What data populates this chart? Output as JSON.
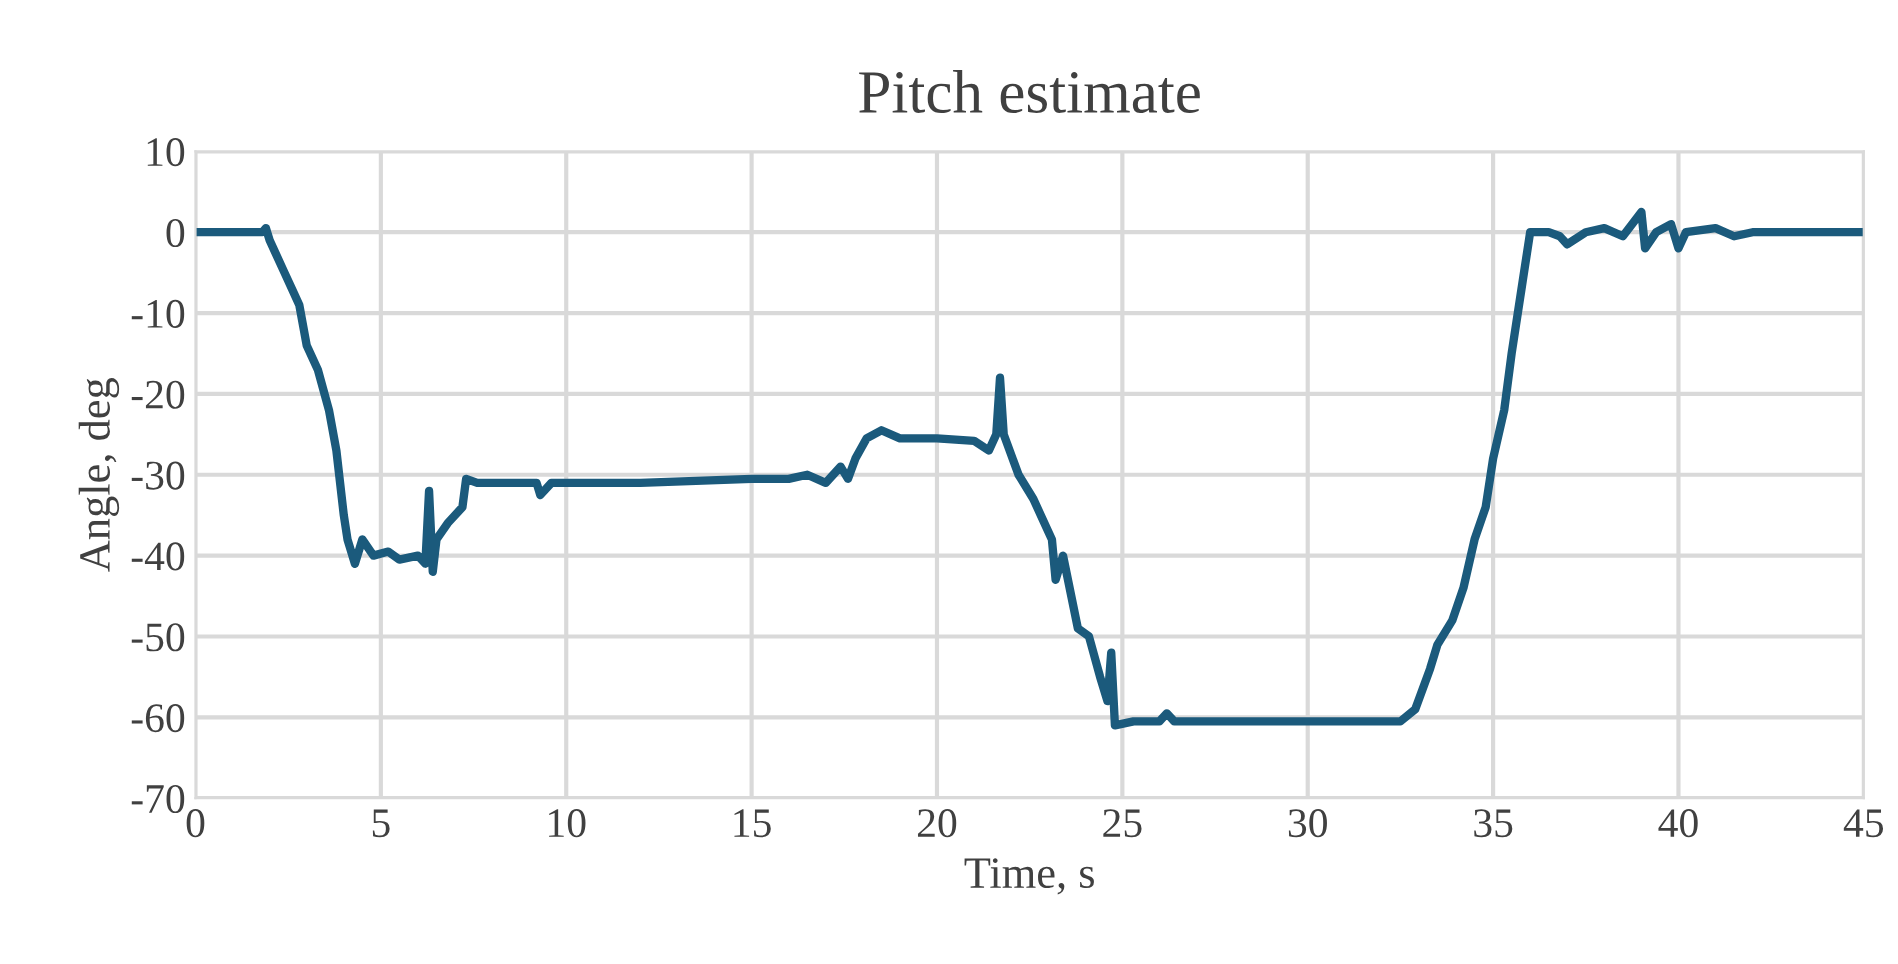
{
  "chart_data": {
    "type": "line",
    "title": "Pitch estimate",
    "xlabel": "Time, s",
    "ylabel": "Angle, deg",
    "xlim": [
      0,
      45
    ],
    "ylim": [
      -70,
      10
    ],
    "xticks": [
      0,
      5,
      10,
      15,
      20,
      25,
      30,
      35,
      40,
      45
    ],
    "yticks": [
      -70,
      -60,
      -50,
      -40,
      -30,
      -20,
      -10,
      0,
      10
    ],
    "grid": true,
    "legend": false,
    "marker": "none",
    "line_style": "solid",
    "series": [
      {
        "color": "#1b5a7c",
        "x": [
          0,
          1.8,
          1.9,
          2.0,
          2.4,
          2.6,
          2.8,
          3.0,
          3.3,
          3.6,
          3.8,
          4.0,
          4.1,
          4.3,
          4.5,
          4.8,
          5.2,
          5.5,
          6.0,
          6.2,
          6.3,
          6.4,
          6.5,
          6.8,
          7.2,
          7.3,
          7.6,
          8.5,
          9.2,
          9.3,
          9.6,
          10,
          12,
          15,
          16,
          16.5,
          17,
          17.4,
          17.6,
          17.8,
          18.1,
          18.5,
          19,
          20,
          21,
          21.4,
          21.6,
          21.7,
          21.8,
          22.2,
          22.6,
          22.8,
          23.1,
          23.2,
          23.4,
          23.8,
          24.1,
          24.4,
          24.6,
          24.7,
          24.8,
          25.3,
          26,
          26.2,
          26.4,
          30,
          32.5,
          32.9,
          33.3,
          33.5,
          33.9,
          34.2,
          34.5,
          34.8,
          35.0,
          35.3,
          35.5,
          35.8,
          36.0,
          36.5,
          36.8,
          37,
          37.5,
          38.0,
          38.5,
          39.0,
          39.1,
          39.4,
          39.8,
          40.0,
          40.2,
          41,
          41.5,
          42,
          45
        ],
        "values": [
          0,
          0,
          0.5,
          -1,
          -5,
          -7,
          -9,
          -14,
          -17,
          -22,
          -27,
          -35,
          -38,
          -41,
          -38,
          -40,
          -39.5,
          -40.5,
          -40,
          -41,
          -32,
          -42,
          -38,
          -36,
          -34,
          -30.5,
          -31,
          -31,
          -31,
          -32.5,
          -31,
          -31,
          -31,
          -30.5,
          -30.5,
          -30,
          -31,
          -29,
          -30.5,
          -28,
          -25.5,
          -24.5,
          -25.5,
          -25.5,
          -25.8,
          -27,
          -25,
          -18,
          -25,
          -30,
          -33,
          -35,
          -38,
          -43,
          -40,
          -49,
          -50,
          -55,
          -58,
          -52,
          -61,
          -60.5,
          -60.5,
          -59.5,
          -60.5,
          -60.5,
          -60.5,
          -59,
          -54,
          -51,
          -48,
          -44,
          -38,
          -34,
          -28,
          -22,
          -15,
          -6,
          0,
          0,
          -0.5,
          -1.5,
          0,
          0.5,
          -0.5,
          2.5,
          -2,
          0,
          1,
          -2,
          0,
          0.5,
          -0.5,
          0,
          0
        ]
      }
    ]
  }
}
